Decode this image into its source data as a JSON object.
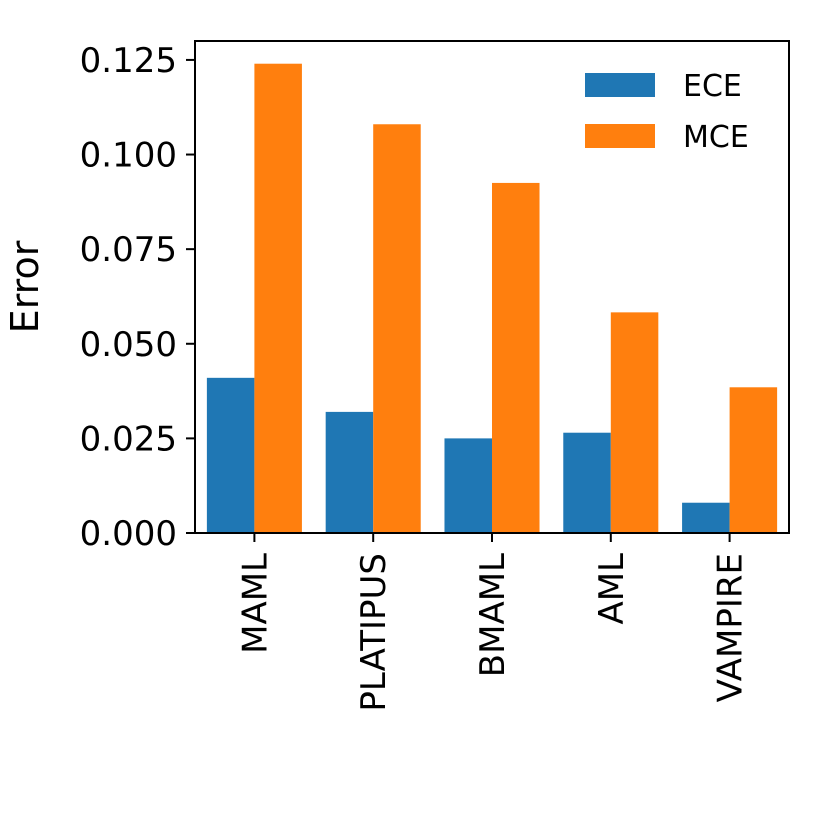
{
  "chart_data": {
    "type": "bar",
    "title": "",
    "xlabel": "",
    "ylabel": "Error",
    "categories": [
      "MAML",
      "PLATIPUS",
      "BMAML",
      "AML",
      "VAMPIRE"
    ],
    "series": [
      {
        "name": "ECE",
        "color": "#1f77b4",
        "values": [
          0.041,
          0.032,
          0.025,
          0.0265,
          0.008
        ]
      },
      {
        "name": "MCE",
        "color": "#ff7f0e",
        "values": [
          0.124,
          0.108,
          0.0925,
          0.0583,
          0.0385
        ]
      }
    ],
    "ylim": [
      0,
      0.13
    ],
    "yticks": [
      0.0,
      0.025,
      0.05,
      0.075,
      0.1,
      0.125
    ],
    "ytick_labels": [
      "0.000",
      "0.025",
      "0.050",
      "0.075",
      "0.100",
      "0.125"
    ],
    "grid": false,
    "legend_position": "top-right"
  }
}
